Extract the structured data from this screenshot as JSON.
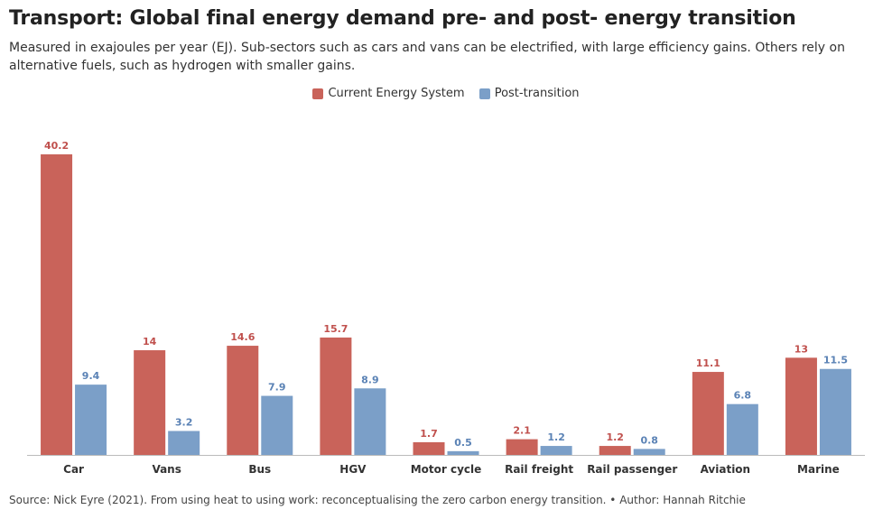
{
  "title": "Transport: Global final energy demand pre- and post- energy transition",
  "subtitle": "Measured in exajoules per year (EJ). Sub-sectors such as cars and vans can be electrified, with large efficiency gains. Others rely on alternative fuels, such as hydrogen with smaller gains.",
  "source": "Source: Nick Eyre (2021). From using heat to using work: reconceptualising the zero carbon energy transition. • Author: Hannah Ritchie",
  "colors": {
    "current": "#c9635a",
    "post": "#7b9fc8"
  },
  "chart_data": {
    "type": "bar",
    "categories": [
      "Car",
      "Vans",
      "Bus",
      "HGV",
      "Motor cycle",
      "Rail freight",
      "Rail passenger",
      "Aviation",
      "Marine"
    ],
    "series": [
      {
        "name": "Current Energy System",
        "values": [
          40.2,
          14,
          14.6,
          15.7,
          1.7,
          2.1,
          1.2,
          11.1,
          13
        ]
      },
      {
        "name": "Post-transition",
        "values": [
          9.4,
          3.2,
          7.9,
          8.9,
          0.5,
          1.2,
          0.8,
          6.8,
          11.5
        ]
      }
    ],
    "ylim": [
      0,
      40.2
    ],
    "legend": "top-center",
    "grid": false
  }
}
